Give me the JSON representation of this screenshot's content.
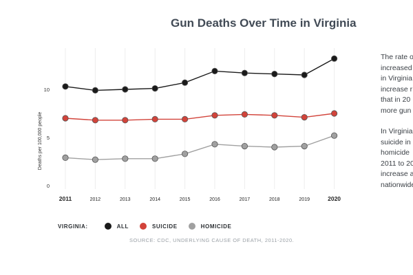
{
  "title": "Gun Deaths Over Time in Virginia",
  "side_text": [
    "The rate o\nincreased\nin Virginia\nincrease r\nthat in 20\nmore gun",
    "In Virginia\nsuicide in\nhomicide\n2011 to 20\nincrease a\nnationwide"
  ],
  "legend": {
    "label": "VIRGINIA:",
    "items": [
      {
        "name": "ALL",
        "color": "#1a1a1a"
      },
      {
        "name": "SUICIDE",
        "color": "#d2433a"
      },
      {
        "name": "HOMICIDE",
        "color": "#a0a0a0"
      }
    ]
  },
  "source": "SOURCE: CDC, UNDERLYING CAUSE OF DEATH, 2011-2020.",
  "chart_data": {
    "type": "line",
    "title": "Gun Deaths Over Time in Virginia",
    "xlabel": "",
    "ylabel": "Deaths per 100,000 people",
    "categories": [
      "2011",
      "2012",
      "2013",
      "2014",
      "2015",
      "2016",
      "2017",
      "2018",
      "2019",
      "2020"
    ],
    "yticks": [
      0,
      5,
      10
    ],
    "ylim": [
      0,
      15
    ],
    "grid": "vertical",
    "legend": "bottom",
    "series": [
      {
        "name": "ALL",
        "color": "#1a1a1a",
        "values": [
          10.3,
          9.9,
          10.0,
          10.1,
          10.7,
          11.9,
          11.7,
          11.6,
          11.5,
          13.2
        ]
      },
      {
        "name": "SUICIDE",
        "color": "#d2433a",
        "values": [
          7.0,
          6.8,
          6.8,
          6.9,
          6.9,
          7.3,
          7.4,
          7.3,
          7.1,
          7.5
        ]
      },
      {
        "name": "HOMICIDE",
        "color": "#a0a0a0",
        "values": [
          2.9,
          2.7,
          2.8,
          2.8,
          3.3,
          4.3,
          4.1,
          4.0,
          4.1,
          5.2
        ]
      }
    ]
  }
}
